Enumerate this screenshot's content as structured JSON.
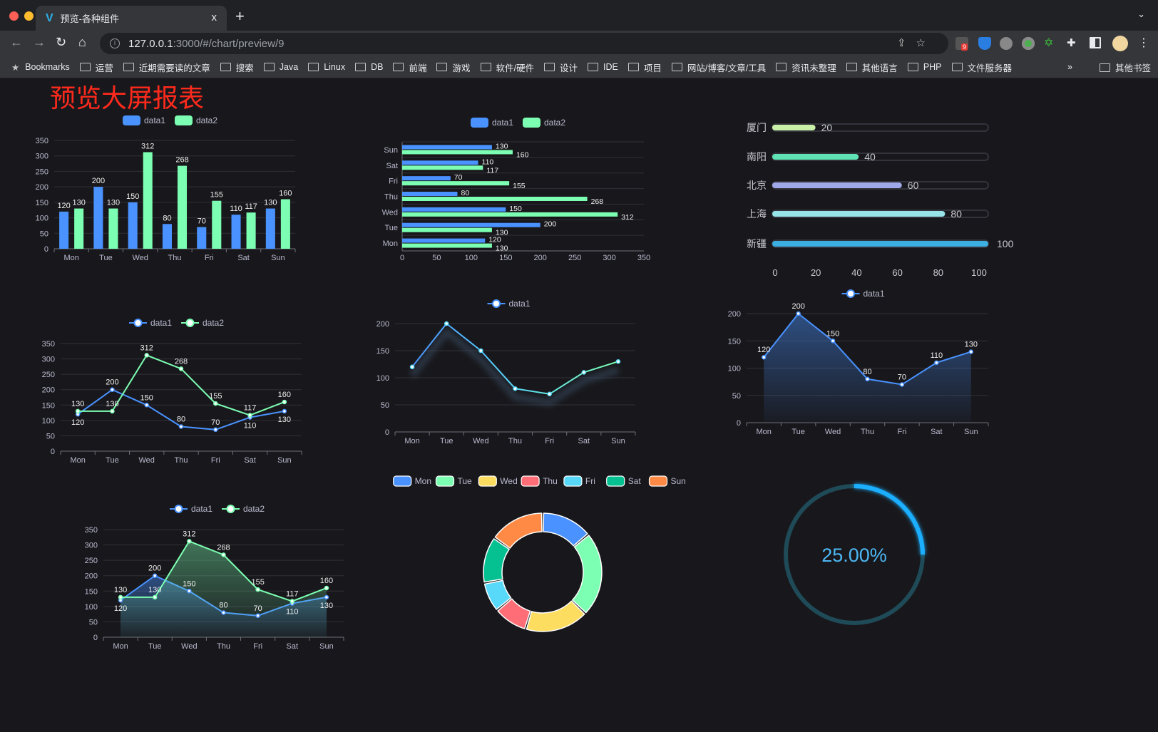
{
  "browser": {
    "tab_title": "预览-各种组件",
    "tab_close": "x",
    "new_tab": "+",
    "url_host": "127.0.0.1",
    "url_path": ":3000/#/chart/preview/9",
    "extension_badge": "9",
    "bookmarks_label": "Bookmarks",
    "bookmarks": [
      "运营",
      "近期需要读的文章",
      "搜索",
      "Java",
      "Linux",
      "DB",
      "前端",
      "游戏",
      "软件/硬件",
      "设计",
      "IDE",
      "项目",
      "网站/博客/文章/工具",
      "资讯未整理",
      "其他语言",
      "PHP",
      "文件服务器"
    ],
    "bookmarks_overflow": "»",
    "other_bookmarks": "其他书签"
  },
  "page": {
    "title": "预览大屏报表",
    "background": "#18181c"
  },
  "colors": {
    "data1": "#4992ff",
    "data2": "#7cffb2",
    "axis_text": "#b9b8ce",
    "grid": "#2f2f37",
    "label": "#eeeeee"
  },
  "chart_data": [
    {
      "id": "bar",
      "type": "bar",
      "categories": [
        "Mon",
        "Tue",
        "Wed",
        "Thu",
        "Fri",
        "Sat",
        "Sun"
      ],
      "series": [
        {
          "name": "data1",
          "values": [
            120,
            200,
            150,
            80,
            70,
            110,
            130
          ]
        },
        {
          "name": "data2",
          "values": [
            130,
            130,
            312,
            268,
            155,
            117,
            160
          ]
        }
      ],
      "ylim": [
        0,
        350
      ],
      "yticks": [
        0,
        50,
        100,
        150,
        200,
        250,
        300,
        350
      ],
      "legend": "top-center",
      "grid": true
    },
    {
      "id": "hbar",
      "type": "bar",
      "orientation": "horizontal",
      "categories": [
        "Mon",
        "Tue",
        "Wed",
        "Thu",
        "Fri",
        "Sat",
        "Sun"
      ],
      "series": [
        {
          "name": "data1",
          "values": [
            120,
            200,
            150,
            80,
            70,
            110,
            130
          ]
        },
        {
          "name": "data2",
          "values": [
            130,
            130,
            312,
            268,
            155,
            117,
            160
          ]
        }
      ],
      "xlim": [
        0,
        350
      ],
      "xticks": [
        0,
        50,
        100,
        150,
        200,
        250,
        300,
        350
      ],
      "legend": "top-center",
      "grid": true
    },
    {
      "id": "progress",
      "type": "bar",
      "orientation": "horizontal",
      "categories": [
        "新疆",
        "上海",
        "北京",
        "南阳",
        "厦门"
      ],
      "values": [
        100,
        80,
        60,
        40,
        20
      ],
      "colors": [
        "#3bafe2",
        "#96e3e8",
        "#9fa8e8",
        "#5fe3b4",
        "#c8f0a6"
      ],
      "xlim": [
        0,
        100
      ],
      "xticks": [
        0,
        20,
        40,
        60,
        80,
        100
      ]
    },
    {
      "id": "line",
      "type": "line",
      "categories": [
        "Mon",
        "Tue",
        "Wed",
        "Thu",
        "Fri",
        "Sat",
        "Sun"
      ],
      "series": [
        {
          "name": "data1",
          "values": [
            120,
            200,
            150,
            80,
            70,
            110,
            130
          ]
        },
        {
          "name": "data2",
          "values": [
            130,
            130,
            312,
            268,
            155,
            117,
            160
          ]
        }
      ],
      "ylim": [
        0,
        350
      ],
      "yticks": [
        0,
        50,
        100,
        150,
        200,
        250,
        300,
        350
      ],
      "legend": "top-center",
      "area": false
    },
    {
      "id": "line-single",
      "type": "line",
      "categories": [
        "Mon",
        "Tue",
        "Wed",
        "Thu",
        "Fri",
        "Sat",
        "Sun"
      ],
      "series": [
        {
          "name": "data1",
          "values": [
            120,
            200,
            150,
            80,
            70,
            110,
            130
          ]
        }
      ],
      "ylim": [
        0,
        200
      ],
      "yticks": [
        0,
        50,
        100,
        150,
        200
      ],
      "legend": "top-center",
      "gradient": [
        "#4992ff",
        "#58d9f9",
        "#7cffb2"
      ]
    },
    {
      "id": "area-single",
      "type": "area",
      "categories": [
        "Mon",
        "Tue",
        "Wed",
        "Thu",
        "Fri",
        "Sat",
        "Sun"
      ],
      "series": [
        {
          "name": "data1",
          "values": [
            120,
            200,
            150,
            80,
            70,
            110,
            130
          ]
        }
      ],
      "ylim": [
        0,
        200
      ],
      "yticks": [
        0,
        50,
        100,
        150,
        200
      ],
      "legend": "top-center",
      "labels": true
    },
    {
      "id": "area",
      "type": "area",
      "categories": [
        "Mon",
        "Tue",
        "Wed",
        "Thu",
        "Fri",
        "Sat",
        "Sun"
      ],
      "series": [
        {
          "name": "data1",
          "values": [
            120,
            200,
            150,
            80,
            70,
            110,
            130
          ]
        },
        {
          "name": "data2",
          "values": [
            130,
            130,
            312,
            268,
            155,
            117,
            160
          ]
        }
      ],
      "ylim": [
        0,
        350
      ],
      "yticks": [
        0,
        50,
        100,
        150,
        200,
        250,
        300,
        350
      ],
      "legend": "top-center"
    },
    {
      "id": "donut",
      "type": "pie",
      "categories": [
        "Mon",
        "Tue",
        "Wed",
        "Thu",
        "Fri",
        "Sat",
        "Sun"
      ],
      "values": [
        120,
        200,
        150,
        80,
        70,
        110,
        130
      ],
      "colors": [
        "#4992ff",
        "#7cffb2",
        "#fddd60",
        "#ff6e76",
        "#58d9f9",
        "#05c091",
        "#ff8a45"
      ],
      "legend": "top-center"
    },
    {
      "id": "gauge",
      "type": "gauge",
      "value": 25,
      "label": "25.00%",
      "track_color": "#1f4a57",
      "color": "#1aaeff"
    }
  ]
}
